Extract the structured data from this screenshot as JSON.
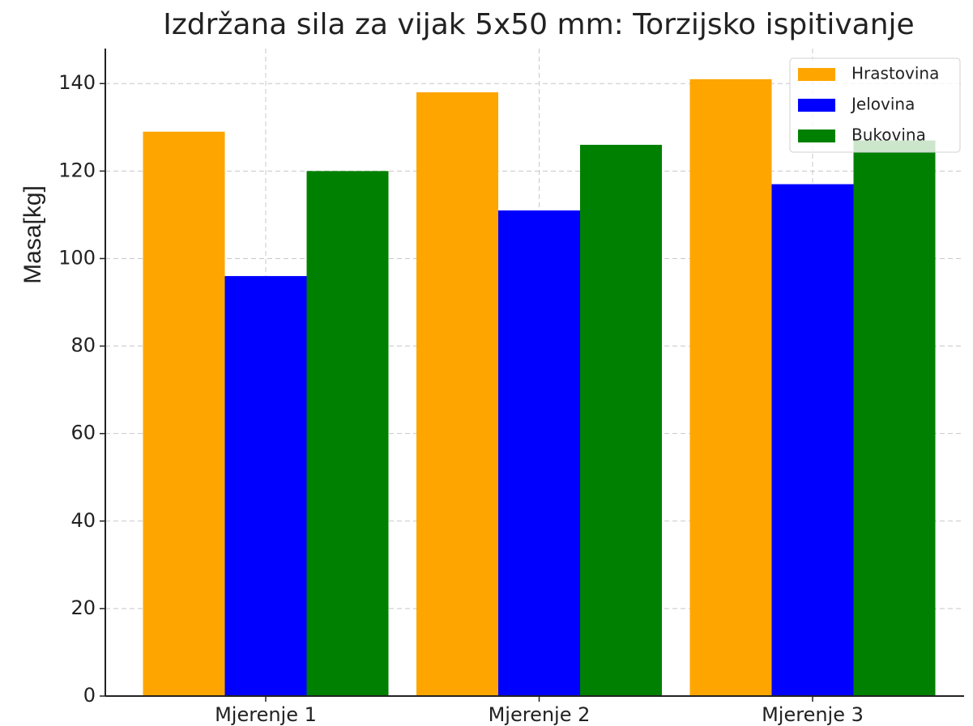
{
  "chart_data": {
    "type": "bar",
    "title": "Izdržana sila za vijak 5x50 mm: Torzijsko ispitivanje",
    "y_label": "Masa[kg]",
    "categories": [
      "Mjerenje 1",
      "Mjerenje 2",
      "Mjerenje 3"
    ],
    "series": [
      {
        "name": "Hrastovina",
        "color": "#ffa500",
        "values": [
          129,
          138,
          141
        ]
      },
      {
        "name": "Jelovina",
        "color": "#0000ff",
        "values": [
          96,
          111,
          117
        ]
      },
      {
        "name": "Bukovina",
        "color": "#008000",
        "values": [
          120,
          126,
          127
        ]
      }
    ],
    "ylim": [
      0,
      148
    ],
    "yticks": [
      0,
      20,
      40,
      60,
      80,
      100,
      120,
      140
    ],
    "grid": true,
    "legend": "upper right"
  }
}
